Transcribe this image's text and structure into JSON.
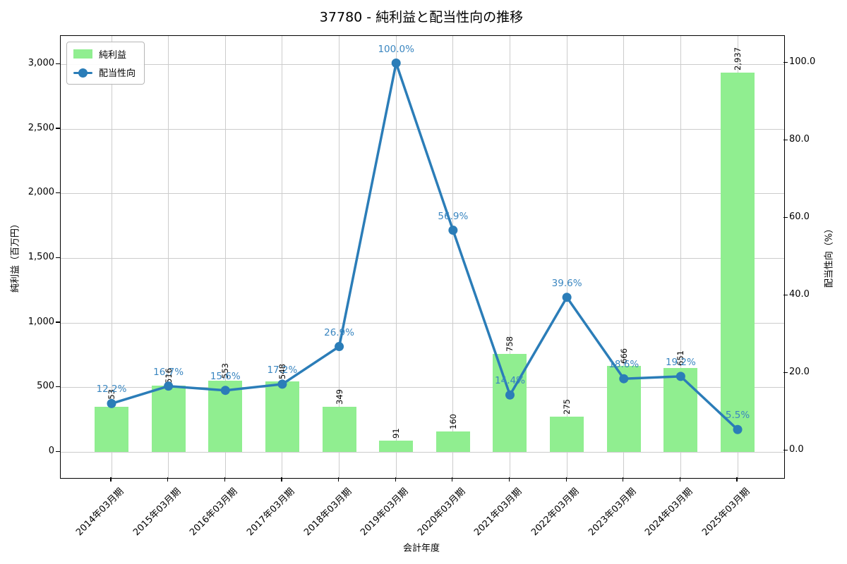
{
  "title": "37780 - 純利益と配当性向の推移",
  "colors": {
    "bar": "#90ee90",
    "line": "#2b7db8",
    "percent_label": "#3a86c0",
    "grid": "#cccccc",
    "spine": "#000000"
  },
  "legend": {
    "items": [
      {
        "label": "純利益",
        "type": "bar"
      },
      {
        "label": "配当性向",
        "type": "line"
      }
    ]
  },
  "chart_data": {
    "type": "bar+line",
    "title": "37780 - 純利益と配当性向の推移",
    "xlabel": "会計年度",
    "ylabel_left": "純利益（百万円）",
    "ylabel_right": "配当性向（%）",
    "categories": [
      "2014年03月期",
      "2015年03月期",
      "2016年03月期",
      "2017年03月期",
      "2018年03月期",
      "2019年03月期",
      "2020年03月期",
      "2021年03月期",
      "2022年03月期",
      "2023年03月期",
      "2024年03月期",
      "2025年03月期"
    ],
    "series": [
      {
        "name": "純利益",
        "type": "bar",
        "axis": "left",
        "unit": "百万円",
        "values": [
          353,
          516,
          553,
          548,
          349,
          91,
          160,
          758,
          275,
          666,
          651,
          2937
        ],
        "labels": [
          "353",
          "516",
          "553",
          "548",
          "349",
          "91",
          "160",
          "758",
          "275",
          "666",
          "651",
          "2,937"
        ]
      },
      {
        "name": "配当性向",
        "type": "line",
        "axis": "right",
        "unit": "%",
        "values": [
          12.2,
          16.7,
          15.6,
          17.2,
          26.9,
          100.0,
          56.9,
          14.4,
          39.6,
          18.6,
          19.2,
          5.5
        ],
        "labels": [
          "12.2%",
          "16.7%",
          "15.6%",
          "17.2%",
          "26.9%",
          "100.0%",
          "56.9%",
          "14.4%",
          "39.6%",
          "18.6%",
          "19.2%",
          "5.5%"
        ]
      }
    ],
    "yticks_left": {
      "values": [
        0,
        500,
        1000,
        1500,
        2000,
        2500,
        3000
      ],
      "labels": [
        "0",
        "500",
        "1,000",
        "1,500",
        "2,000",
        "2,500",
        "3,000"
      ]
    },
    "yticks_right": {
      "values": [
        0,
        20,
        40,
        60,
        80,
        100
      ],
      "labels": [
        "0.0",
        "20.0",
        "40.0",
        "60.0",
        "80.0",
        "100.0"
      ]
    },
    "ylim_left": [
      -200,
      3220
    ],
    "ylim_right": [
      -7,
      107
    ],
    "grid": true,
    "legend_position": "upper left"
  }
}
